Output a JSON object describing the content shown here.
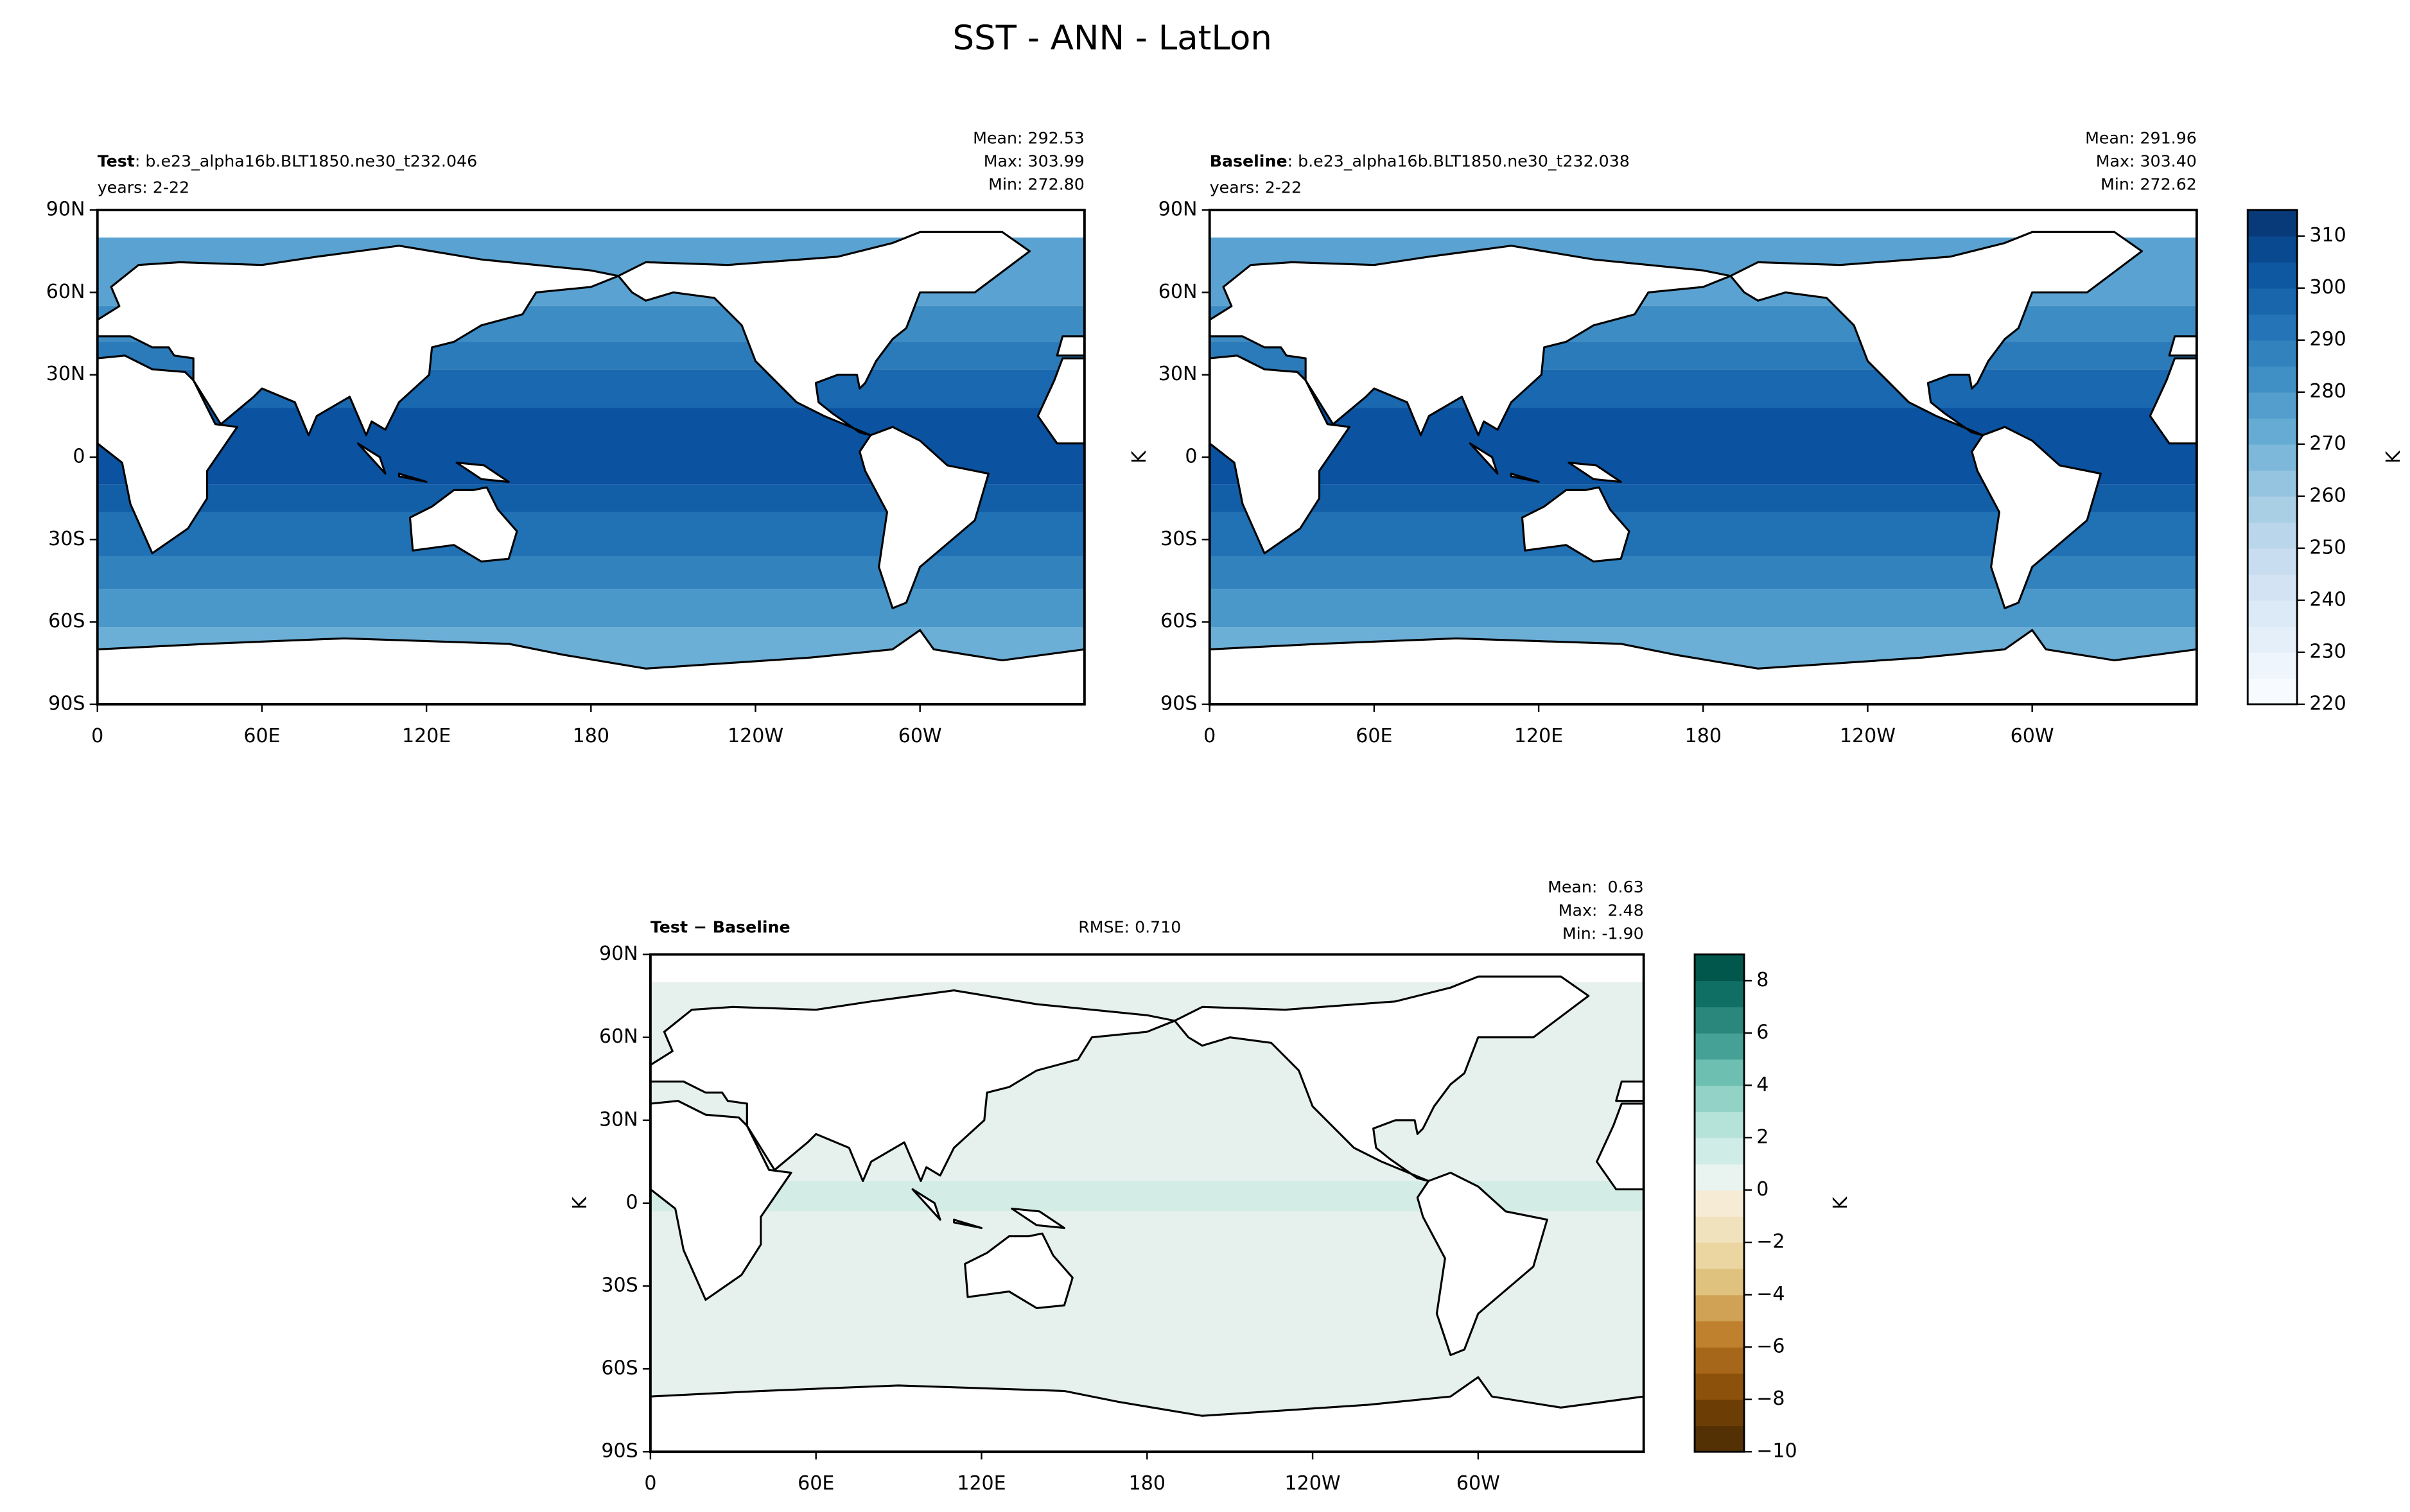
{
  "title": "SST - ANN - LatLon",
  "chart_data": [
    {
      "type": "map",
      "title_bold": "Test",
      "title_rest": ": b.e23_alpha16b.BLT1850.ne30_t232.046",
      "subtitle": "years: 2-22",
      "stats": [
        "Mean: 292.53",
        "Max: 303.99",
        "Min: 272.80"
      ],
      "xlim": [
        0,
        360
      ],
      "ylim": [
        -90,
        90
      ],
      "xticks": [
        0,
        {
          "value": 60,
          "label": "60E"
        },
        {
          "value": 120,
          "label": "120E"
        },
        180,
        {
          "value": 240,
          "label": "120W"
        },
        {
          "value": 300,
          "label": "60W"
        }
      ],
      "yticks": [
        {
          "value": -90,
          "label": "90S"
        },
        {
          "value": -60,
          "label": "60S"
        },
        {
          "value": -30,
          "label": "30S"
        },
        0,
        {
          "value": 30,
          "label": "30N"
        },
        {
          "value": 60,
          "label": "60N"
        },
        {
          "value": 90,
          "label": "90N"
        }
      ]
    },
    {
      "type": "map",
      "title_bold": "Baseline",
      "title_rest": ": b.e23_alpha16b.BLT1850.ne30_t232.038",
      "subtitle": "years: 2-22",
      "stats": [
        "Mean: 291.96",
        "Max: 303.40",
        "Min: 272.62"
      ],
      "ylabel": "K",
      "xlim": [
        0,
        360
      ],
      "ylim": [
        -90,
        90
      ],
      "xticks": [
        0,
        {
          "value": 60,
          "label": "60E"
        },
        {
          "value": 120,
          "label": "120E"
        },
        180,
        {
          "value": 240,
          "label": "120W"
        },
        {
          "value": 300,
          "label": "60W"
        }
      ],
      "yticks": [
        {
          "value": -90,
          "label": "90S"
        },
        {
          "value": -60,
          "label": "60S"
        },
        {
          "value": -30,
          "label": "30S"
        },
        0,
        {
          "value": 30,
          "label": "30N"
        },
        {
          "value": 60,
          "label": "60N"
        },
        {
          "value": 90,
          "label": "90N"
        }
      ],
      "colorbar": {
        "label": "K",
        "lim": [
          220,
          315
        ],
        "ticks": [
          220,
          230,
          240,
          250,
          260,
          270,
          280,
          290,
          300,
          310
        ],
        "colors": [
          "#f7fbff",
          "#eef5fc",
          "#e5eff9",
          "#dce9f6",
          "#d3e3f3",
          "#c8ddf0",
          "#bad6eb",
          "#a9cfe5",
          "#94c4df",
          "#7db8da",
          "#66abd4",
          "#539ecd",
          "#4190c5",
          "#3282be",
          "#2474b7",
          "#1966ad",
          "#0e58a2",
          "#084990",
          "#083a7a"
        ]
      }
    },
    {
      "type": "map",
      "title_bold": "Test − Baseline",
      "annotation": "RMSE: 0.710",
      "stats": [
        "Mean:  0.63",
        "Max:  2.48",
        "Min: -1.90"
      ],
      "ylabel": "K",
      "xlim": [
        0,
        360
      ],
      "ylim": [
        -90,
        90
      ],
      "xticks": [
        0,
        {
          "value": 60,
          "label": "60E"
        },
        {
          "value": 120,
          "label": "120E"
        },
        180,
        {
          "value": 240,
          "label": "120W"
        },
        {
          "value": 300,
          "label": "60W"
        }
      ],
      "yticks": [
        {
          "value": -90,
          "label": "90S"
        },
        {
          "value": -60,
          "label": "60S"
        },
        {
          "value": -30,
          "label": "30S"
        },
        0,
        {
          "value": 30,
          "label": "30N"
        },
        {
          "value": 60,
          "label": "60N"
        },
        {
          "value": 90,
          "label": "90N"
        }
      ],
      "colorbar": {
        "label": "K",
        "lim": [
          -10,
          9
        ],
        "ticks": [
          {
            "value": -10,
            "label": "−10"
          },
          {
            "value": -8,
            "label": "−8"
          },
          {
            "value": -6,
            "label": "−6"
          },
          {
            "value": -4,
            "label": "−4"
          },
          {
            "value": -2,
            "label": "−2"
          },
          0,
          2,
          4,
          6,
          8
        ],
        "colors": [
          "#543005",
          "#6d3d06",
          "#8c510a",
          "#a6671b",
          "#bf812d",
          "#cfa256",
          "#dfc27d",
          "#ebd5a0",
          "#f0e2bc",
          "#f6ecd6",
          "#e9f4f1",
          "#d0ece6",
          "#b5e2d9",
          "#93d3c7",
          "#6dbfb1",
          "#45a196",
          "#2a877c",
          "#0f6f64",
          "#01574c"
        ]
      }
    }
  ]
}
